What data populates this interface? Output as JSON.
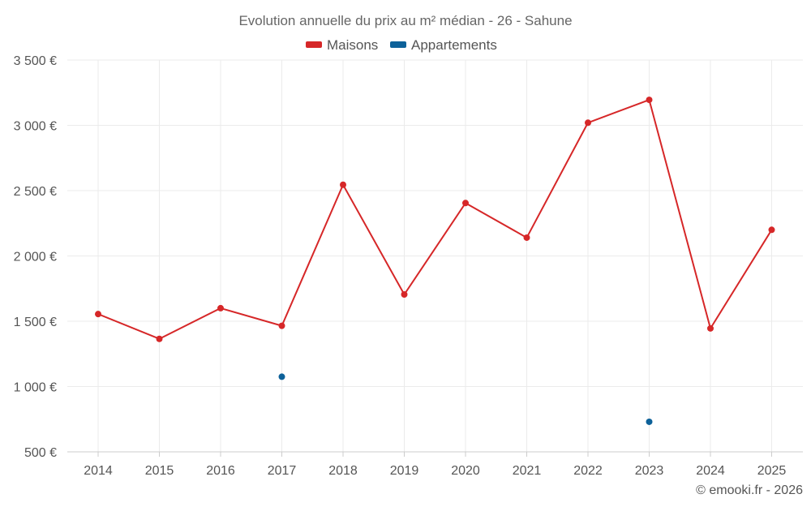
{
  "chart_data": {
    "type": "line",
    "title": "Evolution annuelle du prix au m² médian - 26 - Sahune",
    "categories": [
      "2014",
      "2015",
      "2016",
      "2017",
      "2018",
      "2019",
      "2020",
      "2021",
      "2022",
      "2023",
      "2024",
      "2025"
    ],
    "series": [
      {
        "name": "Maisons",
        "color": "#d62728",
        "values": [
          1555,
          1365,
          1600,
          1465,
          2545,
          1705,
          2405,
          2140,
          3020,
          3195,
          1445,
          2200
        ]
      },
      {
        "name": "Appartements",
        "color": "#0d6199",
        "values": [
          null,
          null,
          null,
          1075,
          null,
          null,
          null,
          null,
          null,
          730,
          null,
          null
        ]
      }
    ],
    "y_ticks": [
      500,
      1000,
      1500,
      2000,
      2500,
      3000,
      3500
    ],
    "y_tick_labels": [
      "500 €",
      "1 000 €",
      "1 500 €",
      "2 000 €",
      "2 500 €",
      "3 000 €",
      "3 500 €"
    ],
    "ylim": [
      500,
      3500
    ],
    "xlabel": "",
    "ylabel": "",
    "grid": true,
    "legend_position": "top-center"
  },
  "credit": "© emooki.fr - 2026"
}
